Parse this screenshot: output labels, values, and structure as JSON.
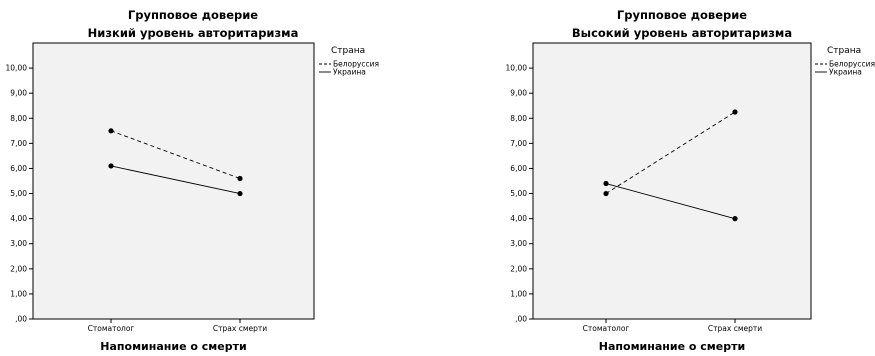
{
  "chart_data": [
    {
      "type": "line",
      "title": "Групповое доверие",
      "subtitle": "Низкий уровень авторитаризма",
      "xlabel": "Напоминание о смерти",
      "ylabel": "",
      "categories": [
        "Стоматолог",
        "Страх смерти"
      ],
      "y_ticks": [
        ",00",
        "1,00",
        "2,00",
        "3,00",
        "4,00",
        "5,00",
        "6,00",
        "7,00",
        "8,00",
        "9,00",
        "10,00"
      ],
      "ylim": [
        0,
        11
      ],
      "grid": false,
      "legend": {
        "title": "Страна",
        "position": "top-right-outside"
      },
      "series": [
        {
          "name": "Белоруссия",
          "values": [
            7.5,
            5.6
          ],
          "line_style": "dashed",
          "color": "#000000"
        },
        {
          "name": "Украина",
          "values": [
            6.1,
            5.0
          ],
          "line_style": "solid",
          "color": "#000000"
        }
      ]
    },
    {
      "type": "line",
      "title": "Групповое доверие",
      "subtitle": "Высокий уровень авторитаризма",
      "xlabel": "Напоминание о смерти",
      "ylabel": "",
      "categories": [
        "Стоматолог",
        "Страх смерти"
      ],
      "y_ticks": [
        ",00",
        "1,00",
        "2,00",
        "3,00",
        "4,00",
        "5,00",
        "6,00",
        "7,00",
        "8,00",
        "9,00",
        "10,00"
      ],
      "ylim": [
        0,
        11
      ],
      "grid": false,
      "legend": {
        "title": "Страна",
        "position": "top-right-outside"
      },
      "series": [
        {
          "name": "Белоруссия",
          "values": [
            5.0,
            8.25
          ],
          "line_style": "dashed",
          "color": "#000000"
        },
        {
          "name": "Украина",
          "values": [
            5.4,
            4.0
          ],
          "line_style": "solid",
          "color": "#000000"
        }
      ]
    }
  ],
  "colors": {
    "plot_background": "#f2f2f2",
    "frame": "#000000",
    "series": "#000000"
  }
}
